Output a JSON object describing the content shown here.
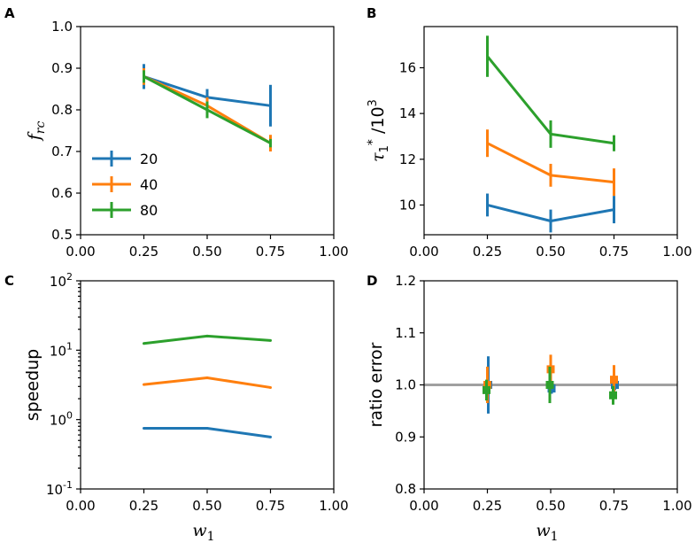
{
  "colors": {
    "s20": "#1f77b4",
    "s40": "#ff7f0e",
    "s80": "#2ca02c",
    "ref_line": "#a0a0a0"
  },
  "chart_data": [
    {
      "id": "A",
      "panel_label": "A",
      "type": "line",
      "x": [
        0.25,
        0.5,
        0.75
      ],
      "xlim": [
        0.0,
        1.0
      ],
      "ylim": [
        0.5,
        1.0
      ],
      "xticks": [
        0.0,
        0.25,
        0.5,
        0.75,
        1.0
      ],
      "xtick_labels": [
        "0.00",
        "0.25",
        "0.50",
        "0.75",
        "1.00"
      ],
      "yticks": [
        0.5,
        0.6,
        0.7,
        0.8,
        0.9,
        1.0
      ],
      "ytick_labels": [
        "0.5",
        "0.6",
        "0.7",
        "0.8",
        "0.9",
        "1.0"
      ],
      "ylabel": "f_rc",
      "ylabel_main": "f",
      "ylabel_sub": "rc",
      "xlabel": "",
      "legend": {
        "placement": "lower-left",
        "entries": [
          "20",
          "40",
          "80"
        ]
      },
      "series": [
        {
          "name": "20",
          "color_key": "s20",
          "values": [
            0.88,
            0.83,
            0.81
          ],
          "err": [
            0.03,
            0.02,
            0.05
          ]
        },
        {
          "name": "40",
          "color_key": "s40",
          "values": [
            0.88,
            0.81,
            0.72
          ],
          "err": [
            0.02,
            0.02,
            0.02
          ]
        },
        {
          "name": "80",
          "color_key": "s80",
          "values": [
            0.88,
            0.8,
            0.72
          ],
          "err": [
            0.015,
            0.02,
            0.01
          ]
        }
      ]
    },
    {
      "id": "B",
      "panel_label": "B",
      "type": "line",
      "x": [
        0.25,
        0.5,
        0.75
      ],
      "xlim": [
        0.0,
        1.0
      ],
      "ylim": [
        8.7,
        17.8
      ],
      "xticks": [
        0.0,
        0.25,
        0.5,
        0.75,
        1.0
      ],
      "xtick_labels": [
        "0.00",
        "0.25",
        "0.50",
        "0.75",
        "1.00"
      ],
      "yticks": [
        10,
        12,
        14,
        16
      ],
      "ytick_labels": [
        "10",
        "12",
        "14",
        "16"
      ],
      "ylabel": "τ1* /10^3",
      "ylabel_tau": "τ",
      "ylabel_sub": "1",
      "ylabel_sup": "*",
      "ylabel_tail": " /10",
      "ylabel_exp": "3",
      "xlabel": "",
      "series": [
        {
          "name": "20",
          "color_key": "s20",
          "values": [
            10.0,
            9.3,
            9.8
          ],
          "err": [
            0.5,
            0.5,
            0.6
          ]
        },
        {
          "name": "40",
          "color_key": "s40",
          "values": [
            12.7,
            11.3,
            11.0
          ],
          "err": [
            0.6,
            0.5,
            0.6
          ]
        },
        {
          "name": "80",
          "color_key": "s80",
          "values": [
            16.5,
            13.1,
            12.7
          ],
          "err": [
            0.9,
            0.6,
            0.35
          ]
        }
      ]
    },
    {
      "id": "C",
      "panel_label": "C",
      "type": "line",
      "scale": "log",
      "x": [
        0.25,
        0.5,
        0.75
      ],
      "xlim": [
        0.0,
        1.0
      ],
      "ylim_log10": [
        -1,
        2
      ],
      "xticks": [
        0.0,
        0.25,
        0.5,
        0.75,
        1.0
      ],
      "xtick_labels": [
        "0.00",
        "0.25",
        "0.50",
        "0.75",
        "1.00"
      ],
      "ytick_exps": [
        -1,
        0,
        1,
        2
      ],
      "ytick_base": "10",
      "ytick_exp_labels": [
        "-1",
        "0",
        "1",
        "2"
      ],
      "ylabel": "speedup",
      "xlabel": "w1",
      "xlabel_main": "w",
      "xlabel_sub": "1",
      "series": [
        {
          "name": "20",
          "color_key": "s20",
          "values": [
            0.75,
            0.75,
            0.56
          ]
        },
        {
          "name": "40",
          "color_key": "s40",
          "values": [
            3.2,
            4.0,
            2.9
          ]
        },
        {
          "name": "80",
          "color_key": "s80",
          "values": [
            12.5,
            16.0,
            13.8
          ]
        }
      ]
    },
    {
      "id": "D",
      "panel_label": "D",
      "type": "scatter",
      "x": [
        0.25,
        0.5,
        0.75
      ],
      "xlim": [
        0.0,
        1.0
      ],
      "ylim": [
        0.8,
        1.2
      ],
      "xticks": [
        0.0,
        0.25,
        0.5,
        0.75,
        1.0
      ],
      "xtick_labels": [
        "0.00",
        "0.25",
        "0.50",
        "0.75",
        "1.00"
      ],
      "yticks": [
        0.8,
        0.9,
        1.0,
        1.1,
        1.2
      ],
      "ytick_labels": [
        "0.8",
        "0.9",
        "1.0",
        "1.1",
        "1.2"
      ],
      "ylabel": "ratio error",
      "xlabel": "w1",
      "xlabel_main": "w",
      "xlabel_sub": "1",
      "reference_line": 1.0,
      "series": [
        {
          "name": "20",
          "color_key": "s20",
          "values": [
            1.0,
            0.993,
            1.0
          ],
          "err": [
            0.055,
            0.01,
            0.01
          ]
        },
        {
          "name": "40",
          "color_key": "s40",
          "values": [
            1.0,
            1.03,
            1.01
          ],
          "err": [
            0.035,
            0.028,
            0.028
          ]
        },
        {
          "name": "80",
          "color_key": "s80",
          "values": [
            0.99,
            1.0,
            0.98
          ],
          "err": [
            0.02,
            0.035,
            0.018
          ]
        }
      ]
    }
  ]
}
